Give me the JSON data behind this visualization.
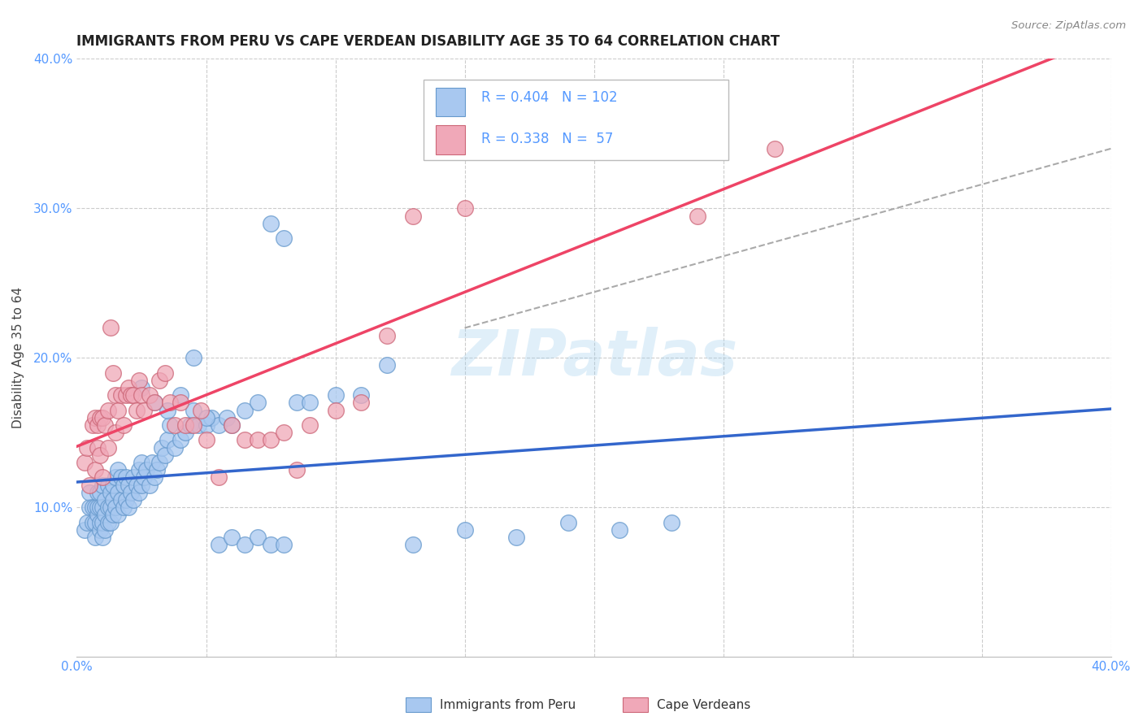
{
  "title": "IMMIGRANTS FROM PERU VS CAPE VERDEAN DISABILITY AGE 35 TO 64 CORRELATION CHART",
  "source": "Source: ZipAtlas.com",
  "ylabel": "Disability Age 35 to 64",
  "xlim": [
    0.0,
    0.4
  ],
  "ylim": [
    0.0,
    0.4
  ],
  "peru_color": "#A8C8F0",
  "peru_edge": "#6699CC",
  "cape_color": "#F0A8B8",
  "cape_edge": "#CC6677",
  "peru_line_color": "#3366CC",
  "cape_line_color": "#EE4466",
  "dashed_color": "#AAAAAA",
  "peru_R": 0.404,
  "peru_N": 102,
  "cape_R": 0.338,
  "cape_N": 57,
  "watermark": "ZIPatlas",
  "legend_peru": "Immigrants from Peru",
  "legend_cape": "Cape Verdeans",
  "grid_color": "#CCCCCC",
  "tick_color": "#5599FF",
  "peru_scatter_x": [
    0.003,
    0.004,
    0.005,
    0.005,
    0.006,
    0.006,
    0.007,
    0.007,
    0.007,
    0.008,
    0.008,
    0.008,
    0.009,
    0.009,
    0.009,
    0.009,
    0.01,
    0.01,
    0.01,
    0.01,
    0.011,
    0.011,
    0.011,
    0.012,
    0.012,
    0.012,
    0.013,
    0.013,
    0.013,
    0.014,
    0.014,
    0.014,
    0.015,
    0.015,
    0.016,
    0.016,
    0.016,
    0.017,
    0.017,
    0.018,
    0.018,
    0.019,
    0.019,
    0.02,
    0.02,
    0.021,
    0.022,
    0.022,
    0.023,
    0.024,
    0.024,
    0.025,
    0.025,
    0.026,
    0.027,
    0.028,
    0.029,
    0.03,
    0.031,
    0.032,
    0.033,
    0.034,
    0.035,
    0.036,
    0.038,
    0.04,
    0.042,
    0.044,
    0.045,
    0.047,
    0.05,
    0.052,
    0.055,
    0.058,
    0.06,
    0.065,
    0.07,
    0.075,
    0.08,
    0.085,
    0.09,
    0.1,
    0.11,
    0.12,
    0.13,
    0.15,
    0.17,
    0.19,
    0.21,
    0.23,
    0.025,
    0.03,
    0.035,
    0.04,
    0.045,
    0.05,
    0.055,
    0.06,
    0.065,
    0.07,
    0.075,
    0.08
  ],
  "peru_scatter_y": [
    0.085,
    0.09,
    0.1,
    0.11,
    0.09,
    0.1,
    0.08,
    0.09,
    0.1,
    0.095,
    0.1,
    0.11,
    0.085,
    0.09,
    0.1,
    0.11,
    0.08,
    0.09,
    0.1,
    0.115,
    0.085,
    0.095,
    0.105,
    0.09,
    0.1,
    0.115,
    0.09,
    0.1,
    0.11,
    0.095,
    0.105,
    0.115,
    0.1,
    0.12,
    0.095,
    0.11,
    0.125,
    0.105,
    0.12,
    0.1,
    0.115,
    0.105,
    0.12,
    0.1,
    0.115,
    0.11,
    0.105,
    0.12,
    0.115,
    0.11,
    0.125,
    0.115,
    0.13,
    0.12,
    0.125,
    0.115,
    0.13,
    0.12,
    0.125,
    0.13,
    0.14,
    0.135,
    0.145,
    0.155,
    0.14,
    0.145,
    0.15,
    0.155,
    0.2,
    0.155,
    0.155,
    0.16,
    0.155,
    0.16,
    0.155,
    0.165,
    0.17,
    0.29,
    0.28,
    0.17,
    0.17,
    0.175,
    0.175,
    0.195,
    0.075,
    0.085,
    0.08,
    0.09,
    0.085,
    0.09,
    0.18,
    0.17,
    0.165,
    0.175,
    0.165,
    0.16,
    0.075,
    0.08,
    0.075,
    0.08,
    0.075,
    0.075
  ],
  "cape_scatter_x": [
    0.003,
    0.004,
    0.005,
    0.006,
    0.007,
    0.007,
    0.008,
    0.008,
    0.009,
    0.009,
    0.01,
    0.01,
    0.011,
    0.012,
    0.012,
    0.013,
    0.014,
    0.015,
    0.015,
    0.016,
    0.017,
    0.018,
    0.019,
    0.02,
    0.021,
    0.022,
    0.023,
    0.024,
    0.025,
    0.026,
    0.028,
    0.03,
    0.032,
    0.034,
    0.036,
    0.038,
    0.04,
    0.042,
    0.045,
    0.048,
    0.05,
    0.055,
    0.06,
    0.065,
    0.07,
    0.075,
    0.08,
    0.085,
    0.09,
    0.1,
    0.11,
    0.12,
    0.13,
    0.15,
    0.19,
    0.24,
    0.27
  ],
  "cape_scatter_y": [
    0.13,
    0.14,
    0.115,
    0.155,
    0.125,
    0.16,
    0.14,
    0.155,
    0.135,
    0.16,
    0.12,
    0.16,
    0.155,
    0.14,
    0.165,
    0.22,
    0.19,
    0.15,
    0.175,
    0.165,
    0.175,
    0.155,
    0.175,
    0.18,
    0.175,
    0.175,
    0.165,
    0.185,
    0.175,
    0.165,
    0.175,
    0.17,
    0.185,
    0.19,
    0.17,
    0.155,
    0.17,
    0.155,
    0.155,
    0.165,
    0.145,
    0.12,
    0.155,
    0.145,
    0.145,
    0.145,
    0.15,
    0.125,
    0.155,
    0.165,
    0.17,
    0.215,
    0.295,
    0.3,
    0.36,
    0.295,
    0.34
  ]
}
